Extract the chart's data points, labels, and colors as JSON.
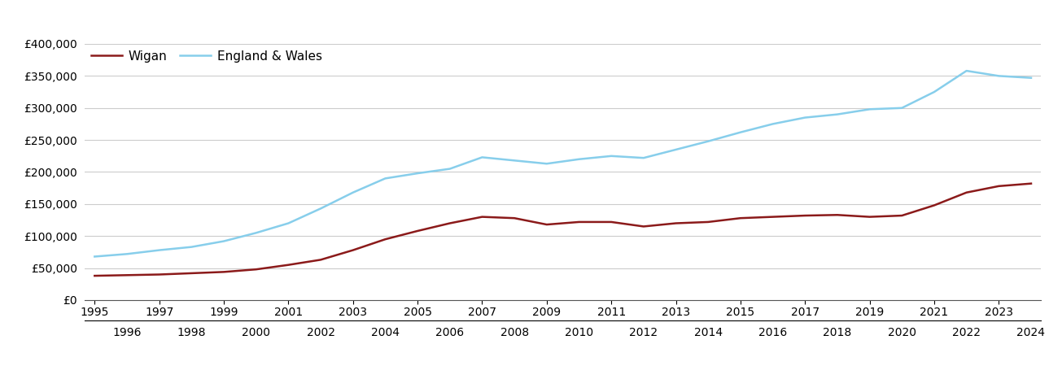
{
  "wigan": {
    "years": [
      1995,
      1996,
      1997,
      1998,
      1999,
      2000,
      2001,
      2002,
      2003,
      2004,
      2005,
      2006,
      2007,
      2008,
      2009,
      2010,
      2011,
      2012,
      2013,
      2014,
      2015,
      2016,
      2017,
      2018,
      2019,
      2020,
      2021,
      2022,
      2023,
      2024
    ],
    "values": [
      38000,
      39000,
      40000,
      42000,
      44000,
      48000,
      55000,
      63000,
      78000,
      95000,
      108000,
      120000,
      130000,
      128000,
      118000,
      122000,
      122000,
      115000,
      120000,
      122000,
      128000,
      130000,
      132000,
      133000,
      130000,
      132000,
      148000,
      168000,
      178000,
      182000
    ]
  },
  "england_wales": {
    "years": [
      1995,
      1996,
      1997,
      1998,
      1999,
      2000,
      2001,
      2002,
      2003,
      2004,
      2005,
      2006,
      2007,
      2008,
      2009,
      2010,
      2011,
      2012,
      2013,
      2014,
      2015,
      2016,
      2017,
      2018,
      2019,
      2020,
      2021,
      2022,
      2023,
      2024
    ],
    "values": [
      68000,
      72000,
      78000,
      83000,
      92000,
      105000,
      120000,
      143000,
      168000,
      190000,
      198000,
      205000,
      223000,
      218000,
      213000,
      220000,
      225000,
      222000,
      235000,
      248000,
      262000,
      275000,
      285000,
      290000,
      298000,
      300000,
      325000,
      358000,
      350000,
      347000
    ]
  },
  "wigan_color": "#8B1A1A",
  "england_wales_color": "#87CEEB",
  "background_color": "#ffffff",
  "grid_color": "#cccccc",
  "ylim": [
    0,
    400000
  ],
  "yticks": [
    0,
    50000,
    100000,
    150000,
    200000,
    250000,
    300000,
    350000,
    400000
  ],
  "xlim_start": 1995,
  "xlim_end": 2024,
  "legend_labels": [
    "Wigan",
    "England & Wales"
  ],
  "line_width": 1.8,
  "tick_fontsize": 10,
  "legend_fontsize": 11
}
